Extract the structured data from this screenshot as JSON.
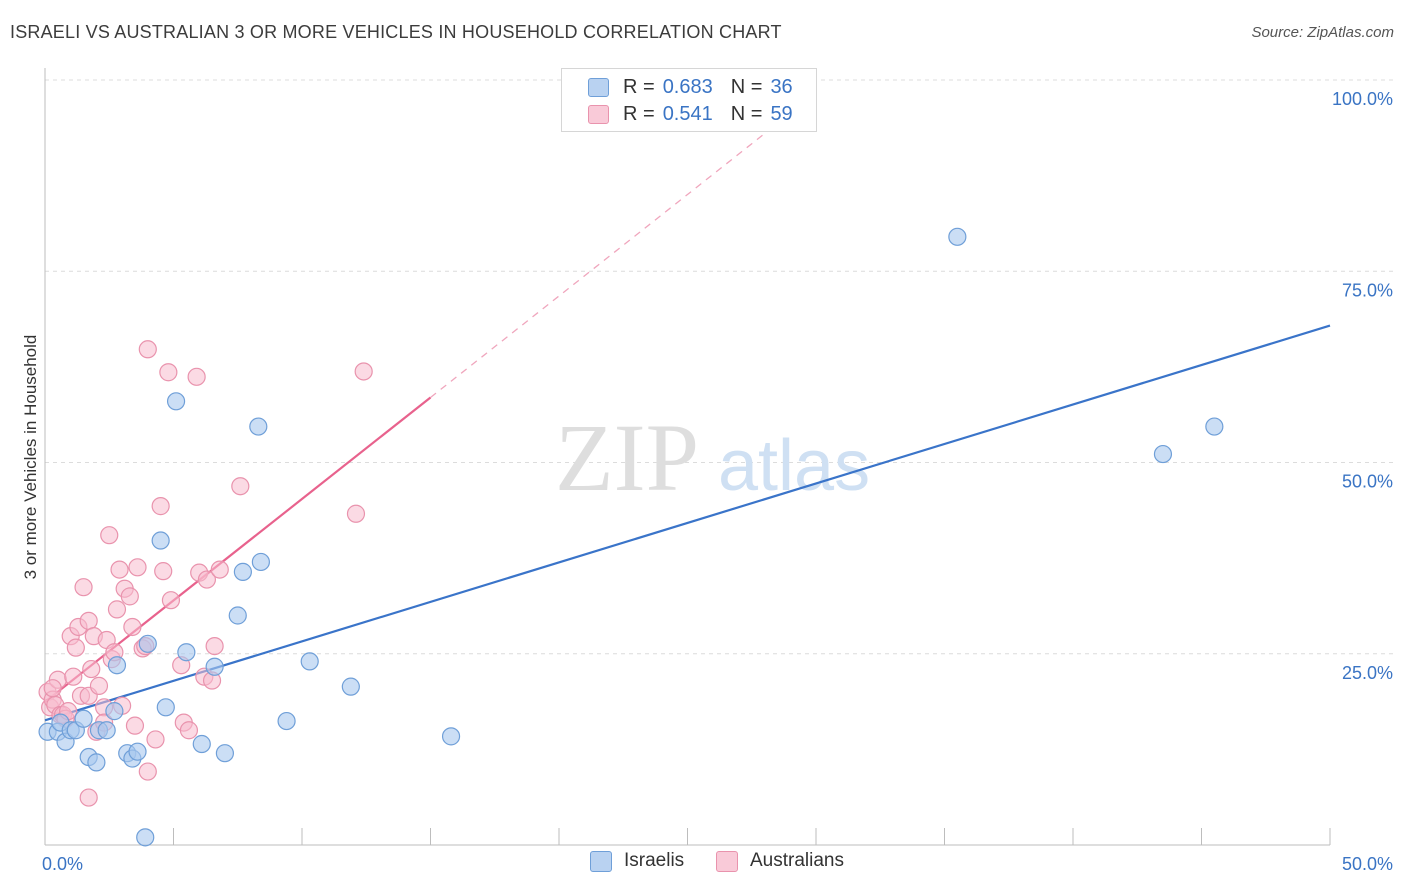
{
  "title": "ISRAELI VS AUSTRALIAN 3 OR MORE VEHICLES IN HOUSEHOLD CORRELATION CHART",
  "source": "Source: ZipAtlas.com",
  "watermark": {
    "zip": "ZIP",
    "atlas": "atlas"
  },
  "legend": {
    "israelis": {
      "r_label": "R =",
      "r_value": "0.683",
      "n_label": "N =",
      "n_value": "36"
    },
    "australians": {
      "r_label": "R =",
      "r_value": "0.541",
      "n_label": "N =",
      "n_value": "59"
    }
  },
  "colors": {
    "israelis_fill": "#a9c8ef",
    "israelis_stroke": "#6f9fd8",
    "israelis_line": "#3a74c9",
    "australians_fill": "#f7bccd",
    "australians_stroke": "#e993ad",
    "australians_line": "#e8628d",
    "axis_label": "#3a74c4",
    "grid": "#dcdcdc"
  },
  "chart_data": {
    "type": "scatter",
    "title": "ISRAELI VS AUSTRALIAN 3 OR MORE VEHICLES IN HOUSEHOLD CORRELATION CHART",
    "xlabel": "",
    "ylabel": "3 or more Vehicles in Household",
    "xlim": [
      0,
      50
    ],
    "ylim": [
      0,
      100
    ],
    "x_tick_labels": [
      {
        "value": 0,
        "label": "0.0%"
      },
      {
        "value": 50,
        "label": "50.0%"
      }
    ],
    "y_tick_labels": [
      {
        "value": 25,
        "label": "25.0%"
      },
      {
        "value": 50,
        "label": "50.0%"
      },
      {
        "value": 75,
        "label": "75.0%"
      },
      {
        "value": 100,
        "label": "100.0%"
      }
    ],
    "legend_position": "bottom",
    "series": [
      {
        "name": "Israelis",
        "r": 0.683,
        "n": 36,
        "trend": {
          "x0": 0,
          "y0": 16.3,
          "x1": 50,
          "y1": 67.9,
          "dashed_extension": false
        },
        "points": [
          {
            "x": 0.1,
            "y": 14.8
          },
          {
            "x": 0.5,
            "y": 14.8
          },
          {
            "x": 0.6,
            "y": 16.0
          },
          {
            "x": 0.8,
            "y": 13.5
          },
          {
            "x": 1.0,
            "y": 15.0
          },
          {
            "x": 1.2,
            "y": 15.0
          },
          {
            "x": 1.5,
            "y": 16.5
          },
          {
            "x": 1.7,
            "y": 11.5
          },
          {
            "x": 2.0,
            "y": 10.8
          },
          {
            "x": 2.1,
            "y": 15.0
          },
          {
            "x": 2.4,
            "y": 15.0
          },
          {
            "x": 2.7,
            "y": 17.5
          },
          {
            "x": 2.8,
            "y": 23.5
          },
          {
            "x": 3.2,
            "y": 12.0
          },
          {
            "x": 3.4,
            "y": 11.3
          },
          {
            "x": 3.6,
            "y": 12.2
          },
          {
            "x": 3.9,
            "y": 1.0
          },
          {
            "x": 4.0,
            "y": 26.3
          },
          {
            "x": 4.5,
            "y": 39.8
          },
          {
            "x": 4.7,
            "y": 18.0
          },
          {
            "x": 5.1,
            "y": 58.0
          },
          {
            "x": 5.5,
            "y": 25.2
          },
          {
            "x": 6.1,
            "y": 13.2
          },
          {
            "x": 6.6,
            "y": 23.3
          },
          {
            "x": 7.0,
            "y": 12.0
          },
          {
            "x": 7.5,
            "y": 30.0
          },
          {
            "x": 7.7,
            "y": 35.7
          },
          {
            "x": 8.3,
            "y": 54.7
          },
          {
            "x": 8.4,
            "y": 37.0
          },
          {
            "x": 9.4,
            "y": 16.2
          },
          {
            "x": 10.3,
            "y": 24.0
          },
          {
            "x": 11.9,
            "y": 20.7
          },
          {
            "x": 15.8,
            "y": 14.2
          },
          {
            "x": 35.5,
            "y": 79.5
          },
          {
            "x": 43.5,
            "y": 51.1
          },
          {
            "x": 45.5,
            "y": 54.7
          }
        ]
      },
      {
        "name": "Australians",
        "r": 0.541,
        "n": 59,
        "trend": {
          "x0": 0,
          "y0": 18.7,
          "x1": 15.0,
          "y1": 58.5,
          "dashed_extension": true,
          "dashed_to": {
            "x": 30.0,
            "y": 98.3
          }
        },
        "points": [
          {
            "x": 0.1,
            "y": 20.0
          },
          {
            "x": 0.2,
            "y": 18.0
          },
          {
            "x": 0.3,
            "y": 19.0
          },
          {
            "x": 0.4,
            "y": 18.3
          },
          {
            "x": 0.5,
            "y": 21.6
          },
          {
            "x": 0.6,
            "y": 17.0
          },
          {
            "x": 0.7,
            "y": 17.0
          },
          {
            "x": 0.8,
            "y": 16.5
          },
          {
            "x": 1.0,
            "y": 27.3
          },
          {
            "x": 1.1,
            "y": 22.0
          },
          {
            "x": 1.2,
            "y": 25.8
          },
          {
            "x": 1.3,
            "y": 28.5
          },
          {
            "x": 1.4,
            "y": 19.5
          },
          {
            "x": 1.5,
            "y": 33.7
          },
          {
            "x": 1.7,
            "y": 19.5
          },
          {
            "x": 1.7,
            "y": 29.3
          },
          {
            "x": 1.8,
            "y": 23.0
          },
          {
            "x": 1.9,
            "y": 27.3
          },
          {
            "x": 2.0,
            "y": 14.8
          },
          {
            "x": 2.1,
            "y": 20.8
          },
          {
            "x": 2.3,
            "y": 18.0
          },
          {
            "x": 2.3,
            "y": 16.0
          },
          {
            "x": 2.4,
            "y": 26.8
          },
          {
            "x": 2.5,
            "y": 40.5
          },
          {
            "x": 2.6,
            "y": 24.3
          },
          {
            "x": 2.7,
            "y": 25.2
          },
          {
            "x": 2.8,
            "y": 30.8
          },
          {
            "x": 2.9,
            "y": 36.0
          },
          {
            "x": 3.0,
            "y": 18.2
          },
          {
            "x": 3.1,
            "y": 33.5
          },
          {
            "x": 3.3,
            "y": 32.5
          },
          {
            "x": 3.4,
            "y": 28.5
          },
          {
            "x": 3.5,
            "y": 15.6
          },
          {
            "x": 3.6,
            "y": 36.3
          },
          {
            "x": 3.8,
            "y": 25.7
          },
          {
            "x": 3.9,
            "y": 26.0
          },
          {
            "x": 4.0,
            "y": 9.6
          },
          {
            "x": 4.0,
            "y": 64.8
          },
          {
            "x": 4.3,
            "y": 13.8
          },
          {
            "x": 4.5,
            "y": 44.3
          },
          {
            "x": 4.6,
            "y": 35.8
          },
          {
            "x": 4.8,
            "y": 61.8
          },
          {
            "x": 4.9,
            "y": 32.0
          },
          {
            "x": 5.3,
            "y": 23.5
          },
          {
            "x": 5.4,
            "y": 16.0
          },
          {
            "x": 5.6,
            "y": 15.0
          },
          {
            "x": 5.9,
            "y": 61.2
          },
          {
            "x": 6.0,
            "y": 35.6
          },
          {
            "x": 6.2,
            "y": 22.0
          },
          {
            "x": 6.3,
            "y": 34.7
          },
          {
            "x": 6.5,
            "y": 21.5
          },
          {
            "x": 6.6,
            "y": 26.0
          },
          {
            "x": 6.8,
            "y": 36.0
          },
          {
            "x": 7.6,
            "y": 46.9
          },
          {
            "x": 12.1,
            "y": 43.3
          },
          {
            "x": 12.4,
            "y": 61.9
          },
          {
            "x": 1.7,
            "y": 6.2
          },
          {
            "x": 0.3,
            "y": 20.5
          },
          {
            "x": 0.9,
            "y": 17.5
          }
        ]
      }
    ]
  }
}
